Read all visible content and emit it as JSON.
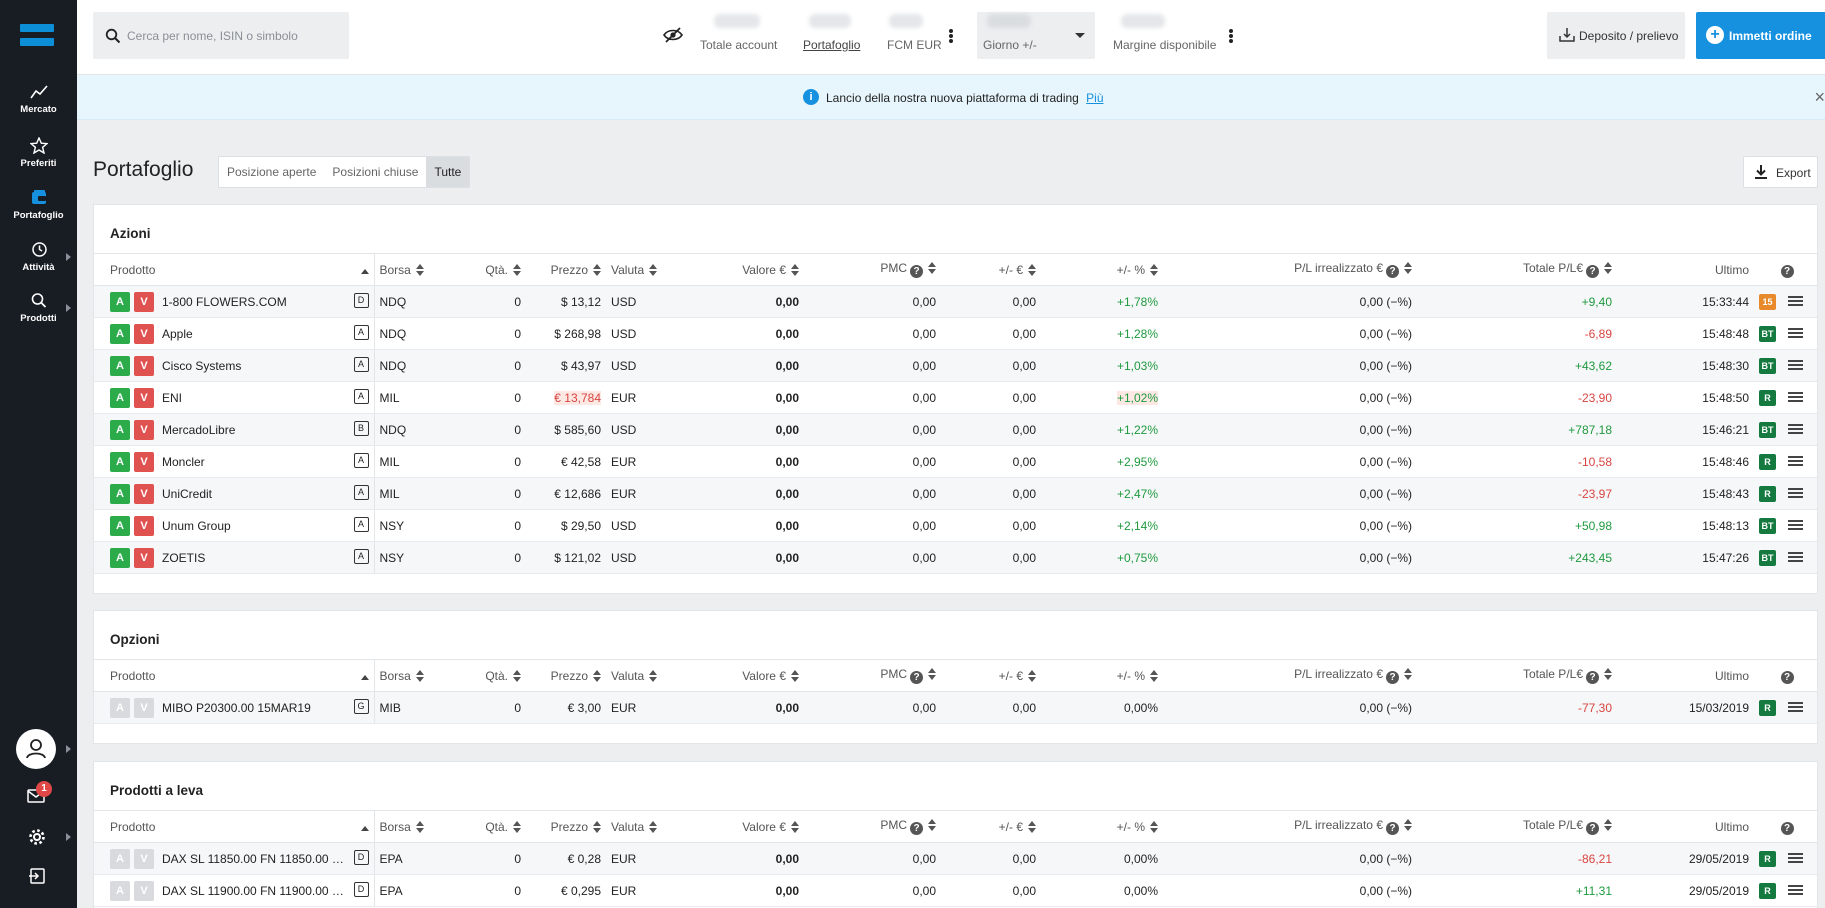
{
  "nav": {
    "items": [
      {
        "label": "Mercato",
        "icon": "chart-line-icon"
      },
      {
        "label": "Preferiti",
        "icon": "star-icon"
      },
      {
        "label": "Portafoglio",
        "icon": "wallet-icon"
      },
      {
        "label": "Attività",
        "icon": "history-icon"
      },
      {
        "label": "Prodotti",
        "icon": "search-icon"
      }
    ],
    "notifications": "1"
  },
  "top": {
    "search_placeholder": "Cerca per nome, ISIN o simbolo",
    "total_account": "Totale account",
    "portfolio": "Portafoglio",
    "fcm": "FCM EUR",
    "day": "Giorno +/-",
    "margin": "Margine disponibile",
    "deposit": "Deposito / prelievo",
    "order": "Immetti ordine"
  },
  "banner": {
    "text": "Lancio della nostra nuova piattaforma di trading",
    "link": "Più"
  },
  "page": {
    "title": "Portafoglio",
    "tabs": [
      "Posizione aperte",
      "Posizioni chiuse",
      "Tutte"
    ],
    "export": "Export"
  },
  "columns": {
    "product": "Prodotto",
    "exchange": "Borsa",
    "qty": "Qtà.",
    "price": "Prezzo",
    "currency": "Valuta",
    "value": "Valore  €",
    "pmc": "PMC",
    "diff_eur": "+/- €",
    "diff_pct": "+/-  %",
    "unrealized": "P/L irrealizzato €",
    "total": "Totale P/L€",
    "last": "Ultimo",
    "help": "?"
  },
  "stocks": {
    "title": "Azioni",
    "rows": [
      {
        "name": "1-800 FLOWERS.COM",
        "cat": "D",
        "exch": "NDQ",
        "qty": "0",
        "price": "$ 13,12",
        "cur": "USD",
        "value": "0,00",
        "pmc": "0,00",
        "de": "0,00",
        "dp": "+1,78%",
        "unr": "0,00 (−%)",
        "tot": "+9,40",
        "last": "15:33:44",
        "tag": "15"
      },
      {
        "name": "Apple",
        "cat": "A",
        "exch": "NDQ",
        "qty": "0",
        "price": "$ 268,98",
        "cur": "USD",
        "value": "0,00",
        "pmc": "0,00",
        "de": "0,00",
        "dp": "+1,28%",
        "unr": "0,00 (−%)",
        "tot": "-6,89",
        "last": "15:48:48",
        "tag": "BT"
      },
      {
        "name": "Cisco Systems",
        "cat": "A",
        "exch": "NDQ",
        "qty": "0",
        "price": "$ 43,97",
        "cur": "USD",
        "value": "0,00",
        "pmc": "0,00",
        "de": "0,00",
        "dp": "+1,03%",
        "unr": "0,00 (−%)",
        "tot": "+43,62",
        "last": "15:48:30",
        "tag": "BT"
      },
      {
        "name": "ENI",
        "cat": "A",
        "exch": "MIL",
        "qty": "0",
        "price": "€ 13,784",
        "cur": "EUR",
        "value": "0,00",
        "pmc": "0,00",
        "de": "0,00",
        "dp": "+1,02%",
        "unr": "0,00 (−%)",
        "tot": "-23,90",
        "last": "15:48:50",
        "tag": "R"
      },
      {
        "name": "MercadoLibre",
        "cat": "B",
        "exch": "NDQ",
        "qty": "0",
        "price": "$ 585,60",
        "cur": "USD",
        "value": "0,00",
        "pmc": "0,00",
        "de": "0,00",
        "dp": "+1,22%",
        "unr": "0,00 (−%)",
        "tot": "+787,18",
        "last": "15:46:21",
        "tag": "BT"
      },
      {
        "name": "Moncler",
        "cat": "A",
        "exch": "MIL",
        "qty": "0",
        "price": "€ 42,58",
        "cur": "EUR",
        "value": "0,00",
        "pmc": "0,00",
        "de": "0,00",
        "dp": "+2,95%",
        "unr": "0,00 (−%)",
        "tot": "-10,58",
        "last": "15:48:46",
        "tag": "R"
      },
      {
        "name": "UniCredit",
        "cat": "A",
        "exch": "MIL",
        "qty": "0",
        "price": "€ 12,686",
        "cur": "EUR",
        "value": "0,00",
        "pmc": "0,00",
        "de": "0,00",
        "dp": "+2,47%",
        "unr": "0,00 (−%)",
        "tot": "-23,97",
        "last": "15:48:43",
        "tag": "R"
      },
      {
        "name": "Unum Group",
        "cat": "A",
        "exch": "NSY",
        "qty": "0",
        "price": "$ 29,50",
        "cur": "USD",
        "value": "0,00",
        "pmc": "0,00",
        "de": "0,00",
        "dp": "+2,14%",
        "unr": "0,00 (−%)",
        "tot": "+50,98",
        "last": "15:48:13",
        "tag": "BT"
      },
      {
        "name": "ZOETIS",
        "cat": "A",
        "exch": "NSY",
        "qty": "0",
        "price": "$ 121,02",
        "cur": "USD",
        "value": "0,00",
        "pmc": "0,00",
        "de": "0,00",
        "dp": "+0,75%",
        "unr": "0,00 (−%)",
        "tot": "+243,45",
        "last": "15:47:26",
        "tag": "BT"
      }
    ]
  },
  "options": {
    "title": "Opzioni",
    "rows": [
      {
        "name": "MIBO P20300.00 15MAR19",
        "cat": "G",
        "exch": "MIB",
        "qty": "0",
        "price": "€ 3,00",
        "cur": "EUR",
        "value": "0,00",
        "pmc": "0,00",
        "de": "0,00",
        "dp": "0,00%",
        "unr": "0,00 (−%)",
        "tot": "-77,30",
        "last": "15/03/2019",
        "tag": "R"
      }
    ]
  },
  "leverage": {
    "title": "Prodotti a leva",
    "rows": [
      {
        "name": "DAX SL 11850.00 FN 11850.00 R...",
        "cat": "D",
        "exch": "EPA",
        "qty": "0",
        "price": "€ 0,28",
        "cur": "EUR",
        "value": "0,00",
        "pmc": "0,00",
        "de": "0,00",
        "dp": "0,00%",
        "unr": "0,00 (−%)",
        "tot": "-86,21",
        "last": "29/05/2019",
        "tag": "R"
      },
      {
        "name": "DAX SL 11900.00 FN 11900.00 R...",
        "cat": "D",
        "exch": "EPA",
        "qty": "0",
        "price": "€ 0,295",
        "cur": "EUR",
        "value": "0,00",
        "pmc": "0,00",
        "de": "0,00",
        "dp": "0,00%",
        "unr": "0,00 (−%)",
        "tot": "+11,31",
        "last": "29/05/2019",
        "tag": "R"
      }
    ]
  }
}
